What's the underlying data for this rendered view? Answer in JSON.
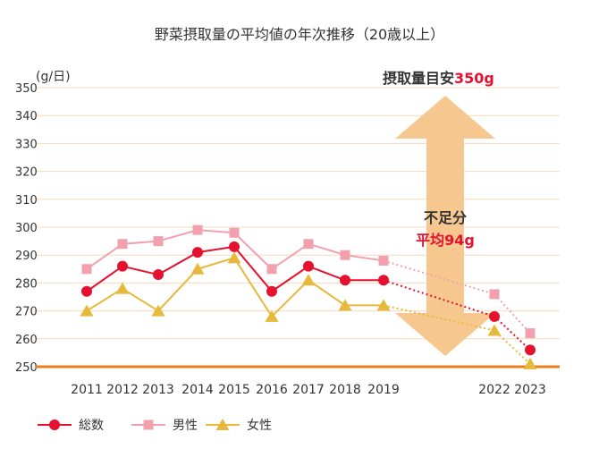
{
  "chart_data": {
    "type": "line",
    "title": "野菜摂取量の平均値の年次推移（20歳以上）",
    "ylabel": "(g/日)",
    "ylim": [
      250,
      350
    ],
    "yticks": [
      250,
      260,
      270,
      280,
      290,
      300,
      310,
      320,
      330,
      340,
      350
    ],
    "grid": true,
    "legend_position": "bottom-left",
    "categories": [
      "2011",
      "2012",
      "2013",
      "2014",
      "2015",
      "2016",
      "2017",
      "2018",
      "2019",
      "2022",
      "2023"
    ],
    "dotted_segments": [
      "2019-2022",
      "2022-2023"
    ],
    "series": [
      {
        "name": "総数",
        "marker": "circle",
        "color": "#e5112e",
        "values": [
          277,
          286,
          283,
          291,
          293,
          277,
          286,
          281,
          281,
          268,
          256
        ]
      },
      {
        "name": "男性",
        "marker": "square",
        "color": "#f2a0ae",
        "values": [
          285,
          294,
          295,
          299,
          298,
          285,
          294,
          290,
          288,
          276,
          262
        ]
      },
      {
        "name": "女性",
        "marker": "triangle",
        "color": "#e6b83c",
        "values": [
          270,
          278,
          270,
          285,
          289,
          268,
          281,
          272,
          272,
          263,
          251
        ]
      }
    ],
    "target": {
      "label_prefix": "摂取量目安",
      "label_value": "350g",
      "value": 350,
      "line_color": "#ea7f1c"
    },
    "shortfall": {
      "label": "不足分",
      "value_label": "平均94g",
      "arrow_color": "#f6c88f"
    },
    "accent_color": "#e5112e",
    "grid_color": "#f7d9b8"
  }
}
